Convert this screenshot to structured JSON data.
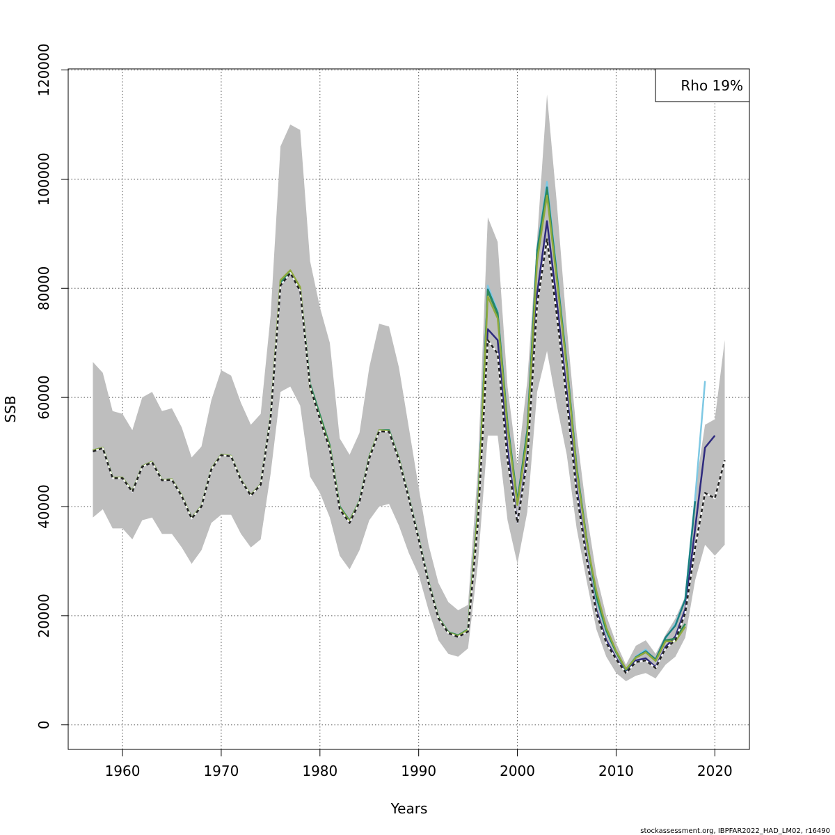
{
  "chart_data": {
    "type": "line",
    "xlabel": "Years",
    "ylabel": "SSB",
    "xlim": [
      1954.5,
      2023.5
    ],
    "ylim": [
      -4500,
      120200
    ],
    "x_ticks": [
      1960,
      1970,
      1980,
      1990,
      2000,
      2010,
      2020
    ],
    "y_ticks": [
      0,
      20000,
      40000,
      60000,
      80000,
      100000,
      120000
    ],
    "grid": true,
    "legend": {
      "placement": "top-right",
      "text": "Rho 19%"
    },
    "colors": {
      "band": "#bebebe",
      "base": "#222222",
      "peel1": "#2e2a7e",
      "peel2": "#7ec8e3",
      "peel3": "#2d8a5a",
      "peel4": "#1a7f80",
      "peel5": "#8faa3c"
    },
    "years": [
      1957,
      1958,
      1959,
      1960,
      1961,
      1962,
      1963,
      1964,
      1965,
      1966,
      1967,
      1968,
      1969,
      1970,
      1971,
      1972,
      1973,
      1974,
      1975,
      1976,
      1977,
      1978,
      1979,
      1980,
      1981,
      1982,
      1983,
      1984,
      1985,
      1986,
      1987,
      1988,
      1989,
      1990,
      1991,
      1992,
      1993,
      1994,
      1995,
      1996,
      1997,
      1998,
      1999,
      2000,
      2001,
      2002,
      2003,
      2004,
      2005,
      2006,
      2007,
      2008,
      2009,
      2010,
      2011,
      2012,
      2013,
      2014,
      2015,
      2016,
      2017,
      2018,
      2019,
      2020,
      2021
    ],
    "band": {
      "upper": [
        66500,
        64500,
        57500,
        57000,
        54000,
        60000,
        61000,
        57500,
        58000,
        54500,
        49000,
        51000,
        59500,
        65000,
        64000,
        59000,
        55000,
        57000,
        75000,
        106000,
        110000,
        109000,
        85000,
        76500,
        70000,
        52500,
        49500,
        53500,
        65500,
        73500,
        73000,
        65500,
        54500,
        43500,
        33000,
        26000,
        22500,
        21000,
        22000,
        47000,
        93000,
        88500,
        62000,
        47500,
        63000,
        89000,
        115500,
        95500,
        73000,
        53500,
        39000,
        27500,
        20000,
        15000,
        11000,
        14500,
        15500,
        13000,
        16500,
        19500,
        23500,
        43000,
        55000,
        56000,
        70500
      ],
      "lower": [
        38000,
        39500,
        36000,
        36000,
        34000,
        37500,
        38000,
        35000,
        35000,
        32500,
        29500,
        32000,
        37000,
        38500,
        38500,
        35000,
        32500,
        34000,
        46000,
        61000,
        62000,
        58500,
        45500,
        42500,
        38000,
        31000,
        28500,
        32000,
        37500,
        40000,
        40500,
        36500,
        31500,
        27500,
        21000,
        15500,
        13000,
        12500,
        14000,
        29500,
        53000,
        53000,
        37500,
        29500,
        39000,
        61000,
        68500,
        58500,
        49500,
        36000,
        26500,
        17500,
        12500,
        9500,
        8000,
        9000,
        9500,
        8500,
        11000,
        12500,
        16000,
        26500,
        33000,
        31000,
        33000
      ]
    },
    "series": [
      {
        "key": "base",
        "values": [
          50100,
          50700,
          45200,
          45200,
          42700,
          47300,
          48100,
          44800,
          44900,
          41900,
          37800,
          40000,
          46800,
          49400,
          49200,
          44800,
          42000,
          44000,
          56200,
          80500,
          82800,
          79500,
          62000,
          56000,
          50500,
          39500,
          37000,
          40800,
          48800,
          53800,
          53700,
          48500,
          41500,
          34000,
          26000,
          19500,
          16800,
          16100,
          17100,
          37000,
          70500,
          68000,
          48500,
          37000,
          48500,
          77000,
          89000,
          75000,
          59500,
          42500,
          30500,
          20500,
          15000,
          12000,
          9500,
          11500,
          11800,
          10400,
          14000,
          15500,
          20500,
          32500,
          42500,
          41500,
          48500
        ]
      },
      {
        "key": "peel1",
        "values": [
          50100,
          50700,
          45200,
          45200,
          42700,
          47300,
          48100,
          44800,
          44900,
          41900,
          37800,
          40000,
          46800,
          49400,
          49200,
          44800,
          42000,
          44000,
          56200,
          80500,
          82800,
          79500,
          62000,
          56000,
          50500,
          39500,
          37000,
          40800,
          48800,
          53800,
          53700,
          48500,
          41500,
          34000,
          26000,
          19500,
          16800,
          16100,
          17100,
          38000,
          72500,
          70500,
          50500,
          37000,
          49500,
          79000,
          92300,
          77500,
          61000,
          43500,
          31000,
          21000,
          15500,
          12200,
          9700,
          11800,
          12200,
          10600,
          14300,
          16200,
          21200,
          36000,
          50800,
          53000
        ]
      },
      {
        "key": "peel2",
        "values": [
          50300,
          50800,
          45300,
          45300,
          42800,
          47400,
          48200,
          44900,
          45000,
          42000,
          37900,
          40100,
          46900,
          49500,
          49300,
          44900,
          42100,
          44100,
          56400,
          81200,
          83200,
          80000,
          62200,
          56500,
          51000,
          40000,
          37400,
          41000,
          49100,
          54000,
          54000,
          48800,
          41700,
          34200,
          26200,
          19700,
          17000,
          16400,
          17500,
          39800,
          80500,
          75800,
          55500,
          41000,
          54000,
          87000,
          99500,
          83000,
          66500,
          47500,
          34000,
          23000,
          17000,
          13300,
          10100,
          12500,
          13800,
          11700,
          15800,
          18500,
          23000,
          41500,
          63000
        ]
      },
      {
        "key": "peel3",
        "values": [
          50300,
          50800,
          45300,
          45300,
          42800,
          47400,
          48200,
          44900,
          45000,
          42000,
          37900,
          40100,
          46900,
          49500,
          49300,
          44900,
          42100,
          44100,
          56400,
          81200,
          83200,
          80000,
          62500,
          56800,
          51200,
          40000,
          37400,
          41000,
          49100,
          54000,
          54000,
          48800,
          41700,
          34200,
          26200,
          19700,
          17000,
          16400,
          17500,
          39500,
          79500,
          75200,
          55000,
          40800,
          53500,
          86000,
          98000,
          82000,
          66000,
          47000,
          34000,
          23500,
          17300,
          13300,
          10100,
          12300,
          13300,
          11800,
          15500,
          15800,
          18500
        ]
      },
      {
        "key": "peel4",
        "values": [
          50300,
          50800,
          45300,
          45300,
          42800,
          47400,
          48200,
          44900,
          45000,
          42000,
          37900,
          40100,
          46900,
          49500,
          49300,
          44900,
          42100,
          44100,
          56400,
          81000,
          83000,
          80000,
          62300,
          56600,
          51000,
          40000,
          37400,
          41000,
          49100,
          54000,
          54000,
          48800,
          41700,
          34200,
          26200,
          19700,
          17000,
          16400,
          17500,
          39500,
          79800,
          75500,
          55300,
          41000,
          54000,
          87000,
          98500,
          82500,
          66200,
          47300,
          34200,
          23500,
          17300,
          13300,
          10100,
          12400,
          13500,
          12000,
          16000,
          18200,
          23000,
          41000
        ]
      },
      {
        "key": "peel5",
        "values": [
          50300,
          50800,
          45300,
          45300,
          42800,
          47400,
          48200,
          44900,
          45000,
          42000,
          37900,
          40100,
          46900,
          49500,
          49300,
          44900,
          42100,
          44100,
          56400,
          81500,
          83300,
          80200,
          61800,
          56200,
          50800,
          39800,
          37300,
          40900,
          49000,
          54000,
          53800,
          48700,
          41600,
          34100,
          26100,
          19600,
          16900,
          16300,
          17400,
          39000,
          78500,
          74500,
          54500,
          40300,
          52800,
          85000,
          97000,
          81500,
          65500,
          46800,
          33800,
          24500,
          17800,
          13500,
          10200,
          12300,
          13300,
          11700,
          15300,
          15300,
          18000
        ]
      }
    ]
  },
  "footer": {
    "text": "stockassessment.org, IBPFAR2022_HAD_LM02, r16490"
  }
}
